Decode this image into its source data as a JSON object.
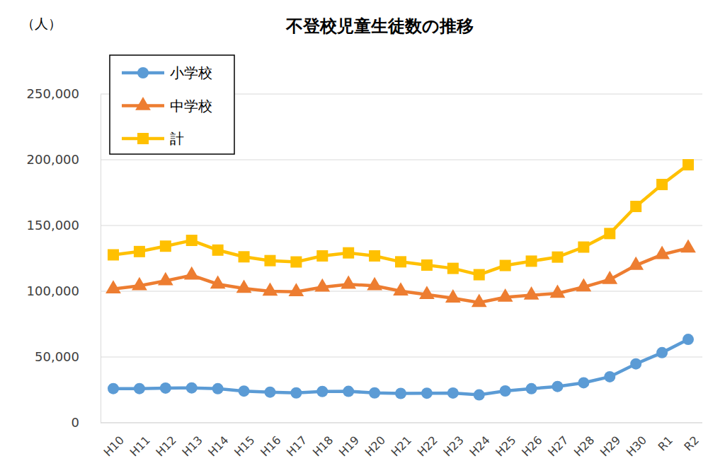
{
  "chart_data": {
    "type": "line",
    "title": "不登校児童生徒数の推移",
    "y_label": "（人）",
    "categories": [
      "H10",
      "H11",
      "H12",
      "H13",
      "H14",
      "H15",
      "H16",
      "H17",
      "H18",
      "H19",
      "H20",
      "H21",
      "H22",
      "H23",
      "H24",
      "H25",
      "H26",
      "H27",
      "H28",
      "H29",
      "H30",
      "R1",
      "R2"
    ],
    "series": [
      {
        "name": "小学校",
        "color": "#5B9BD5",
        "marker": "circle",
        "values": [
          26000,
          26000,
          26400,
          26500,
          25900,
          24100,
          23300,
          22700,
          23800,
          23900,
          22700,
          22300,
          22500,
          22600,
          21200,
          24200,
          25900,
          27600,
          30400,
          35000,
          44800,
          53300,
          63400
        ]
      },
      {
        "name": "中学校",
        "color": "#ED7D31",
        "marker": "triangle",
        "values": [
          101700,
          104200,
          107900,
          112200,
          105400,
          102100,
          100000,
          99600,
          103100,
          105300,
          104200,
          100100,
          97400,
          94800,
          91400,
          95400,
          97000,
          98400,
          103200,
          108900,
          119700,
          127900,
          132800
        ]
      },
      {
        "name": "計",
        "color": "#FFC000",
        "marker": "square",
        "values": [
          127700,
          130200,
          134300,
          138700,
          131300,
          126200,
          123300,
          122300,
          126900,
          129200,
          126900,
          122400,
          119900,
          117400,
          112600,
          119600,
          122900,
          126000,
          133600,
          143900,
          164500,
          181200,
          196200
        ]
      }
    ],
    "ylim": [
      0,
      250000
    ],
    "yticks": [
      0,
      {
        "value": 50000,
        "label": "50,000"
      },
      {
        "value": 100000,
        "label": "100,000"
      },
      {
        "value": 150000,
        "label": "150,000"
      },
      {
        "value": 200000,
        "label": "200,000"
      },
      {
        "value": 250000,
        "label": "250,000"
      }
    ],
    "grid": true,
    "legend": "upper-left"
  }
}
